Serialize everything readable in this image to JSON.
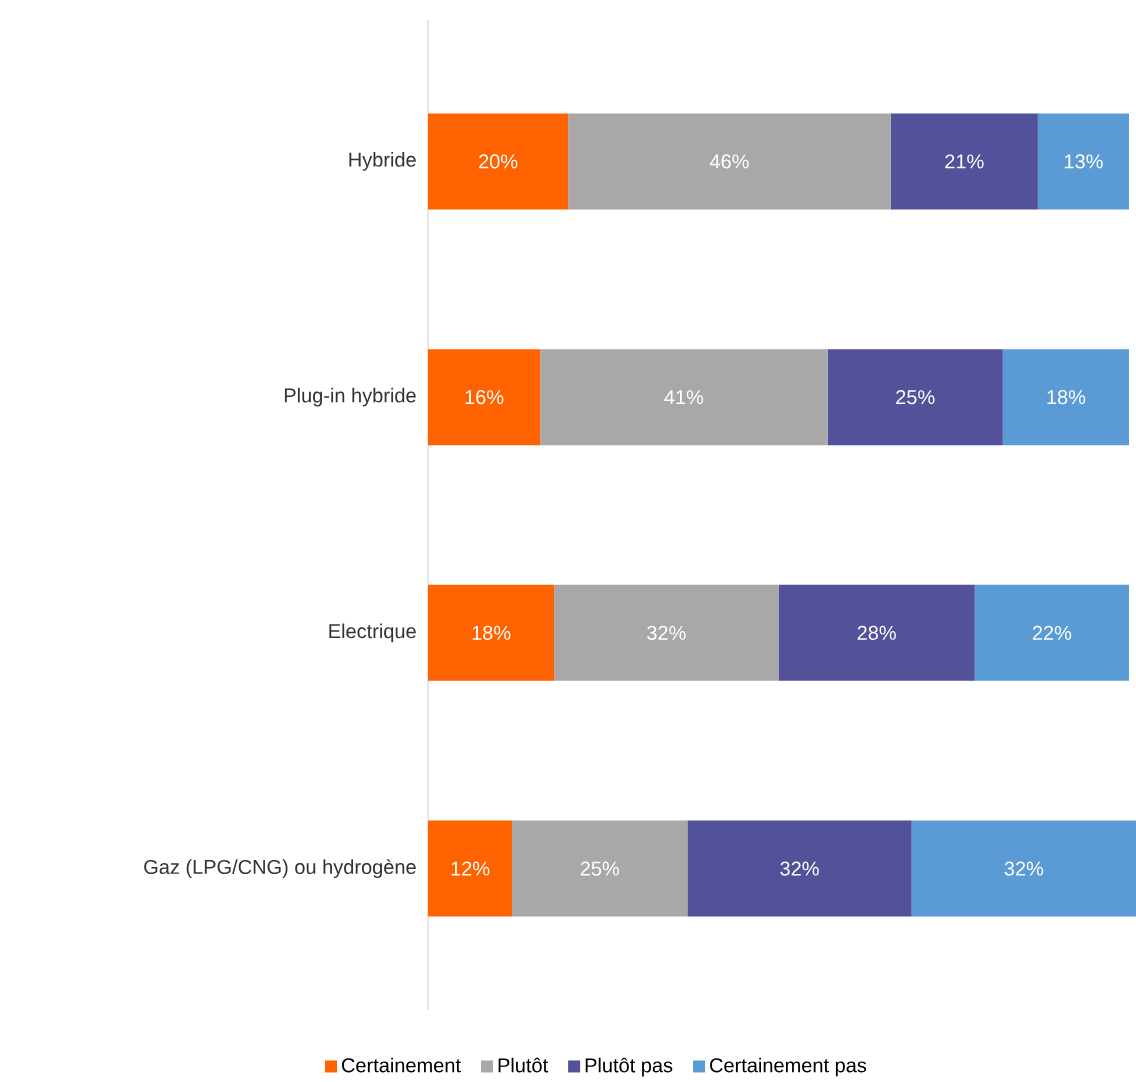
{
  "chart_data": {
    "type": "bar",
    "orientation": "horizontal",
    "stacked": true,
    "legend": "bottom",
    "categories": [
      "Hybride",
      "Plug-in hybride",
      "Electrique",
      "Gaz (LPG/CNG) ou hydrogène"
    ],
    "series": [
      {
        "name": "Certainement",
        "color": "#ff6200",
        "values": [
          20,
          16,
          18,
          12
        ],
        "value_labels": [
          "20%",
          "16%",
          "18%",
          "12%"
        ]
      },
      {
        "name": "Plutôt",
        "color": "#a8a8a8",
        "values": [
          46,
          41,
          32,
          25
        ],
        "value_labels": [
          "46%",
          "41%",
          "32%",
          "25%"
        ]
      },
      {
        "name": "Plutôt pas",
        "color": "#525199",
        "values": [
          21,
          25,
          28,
          32
        ],
        "value_labels": [
          "21%",
          "25%",
          "28%",
          "32%"
        ]
      },
      {
        "name": "Certainement pas",
        "color": "#5a9bd5",
        "values": [
          13,
          18,
          22,
          32
        ],
        "value_labels": [
          "13%",
          "18%",
          "22%",
          "32%"
        ]
      }
    ]
  }
}
